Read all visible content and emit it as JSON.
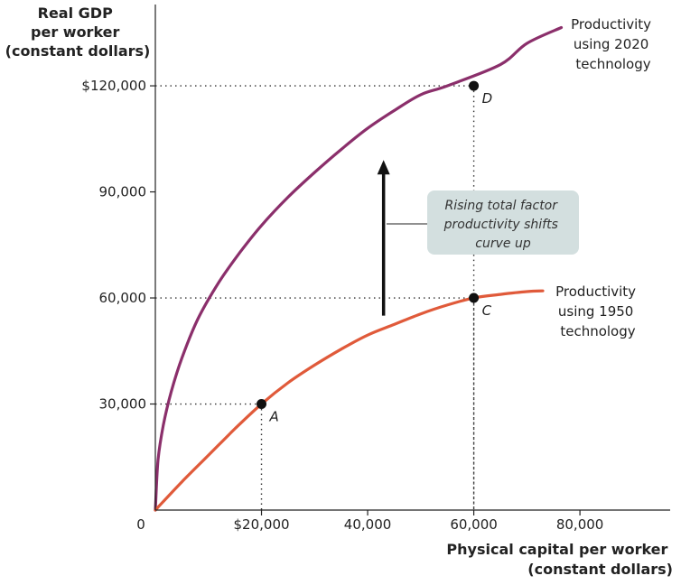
{
  "chart_data": {
    "type": "line",
    "ylabel": [
      "Real GDP",
      "per worker",
      "(constant dollars)"
    ],
    "xlabel": [
      "Physical capital per worker",
      "(constant dollars)"
    ],
    "origin_label": "0",
    "xlim": [
      0,
      97000
    ],
    "ylim": [
      0,
      143000
    ],
    "x_ticks": [
      {
        "value": 20000,
        "label": "$20,000"
      },
      {
        "value": 40000,
        "label": "40,000"
      },
      {
        "value": 60000,
        "label": "60,000"
      },
      {
        "value": 80000,
        "label": "80,000"
      }
    ],
    "y_ticks": [
      {
        "value": 30000,
        "label": "30,000"
      },
      {
        "value": 60000,
        "label": "60,000"
      },
      {
        "value": 90000,
        "label": "90,000"
      },
      {
        "value": 120000,
        "label": "$120,000"
      }
    ],
    "series": [
      {
        "name": [
          "Productivity",
          "using 2020",
          "technology"
        ],
        "color": "#8b2f6b",
        "x": [
          0,
          500,
          1500,
          3000,
          5000,
          8000,
          12000,
          16000,
          20000,
          25000,
          30000,
          35000,
          40000,
          45000,
          50000,
          55000,
          60000,
          65000,
          70000,
          76500
        ],
        "y": [
          0,
          14000,
          24000,
          33500,
          43000,
          54000,
          64500,
          73000,
          80500,
          88500,
          95500,
          102000,
          108000,
          113000,
          117500,
          120000,
          120000,
          126000,
          132000,
          136500
        ]
      },
      {
        "name": [
          "Productivity",
          "using 1950",
          "technology"
        ],
        "color": "#e05a3a",
        "x": [
          0,
          5000,
          10000,
          15000,
          20000,
          25000,
          30000,
          35000,
          40000,
          45000,
          50000,
          55000,
          60000,
          65000,
          70000,
          73000
        ],
        "y": [
          0,
          8000,
          15500,
          23000,
          30000,
          36000,
          41000,
          45500,
          49500,
          52500,
          55500,
          58000,
          60000,
          61000,
          61800,
          62000
        ]
      }
    ],
    "points": [
      {
        "label": "A",
        "x": 20000,
        "y": 30000
      },
      {
        "label": "C",
        "x": 60000,
        "y": 60000
      },
      {
        "label": "D",
        "x": 60000,
        "y": 120000
      }
    ],
    "annotation": {
      "lines": [
        "Rising total factor",
        "productivity shifts",
        "curve up"
      ],
      "box_fill": "#d3dfdf",
      "arrow_x": 43000,
      "arrow_y_from": 55000,
      "arrow_y_to": 99000
    }
  }
}
